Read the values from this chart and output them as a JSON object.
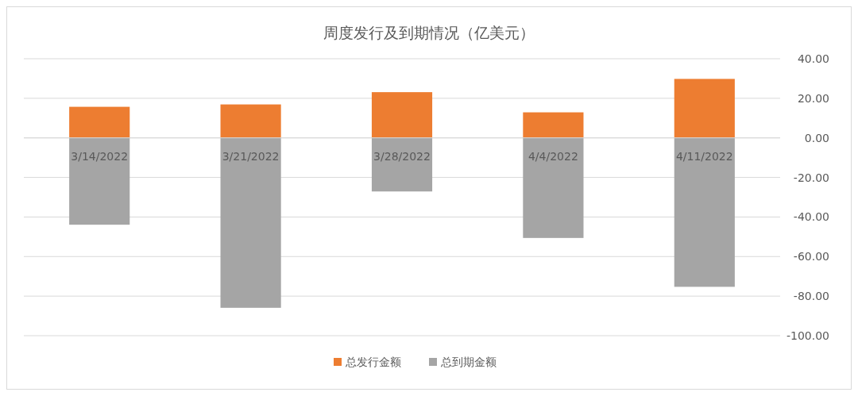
{
  "chart_data": {
    "type": "bar",
    "title": "周度发行及到期情况（亿美元）",
    "categories": [
      "3/14/2022",
      "3/21/2022",
      "3/28/2022",
      "4/4/2022",
      "4/11/2022"
    ],
    "stacked": true,
    "series": [
      {
        "name": "总发行金额",
        "color": "#ed7d31",
        "values": [
          15.7,
          16.9,
          23.1,
          12.9,
          29.8
        ]
      },
      {
        "name": "总到期金额",
        "color": "#a5a5a5",
        "values": [
          -43.9,
          -85.9,
          -27.1,
          -50.6,
          -75.3
        ]
      }
    ],
    "ylim": [
      -100,
      40
    ],
    "yticks": [
      {
        "value": -100,
        "label": "-100.00"
      },
      {
        "value": -80,
        "label": "-80.00"
      },
      {
        "value": -60,
        "label": "-60.00"
      },
      {
        "value": -40,
        "label": "-40.00"
      },
      {
        "value": -20,
        "label": "-20.00"
      },
      {
        "value": 0,
        "label": "0.00"
      },
      {
        "value": 20,
        "label": "20.00"
      },
      {
        "value": 40,
        "label": "40.00"
      }
    ],
    "grid": "y",
    "legend": "bottom"
  }
}
